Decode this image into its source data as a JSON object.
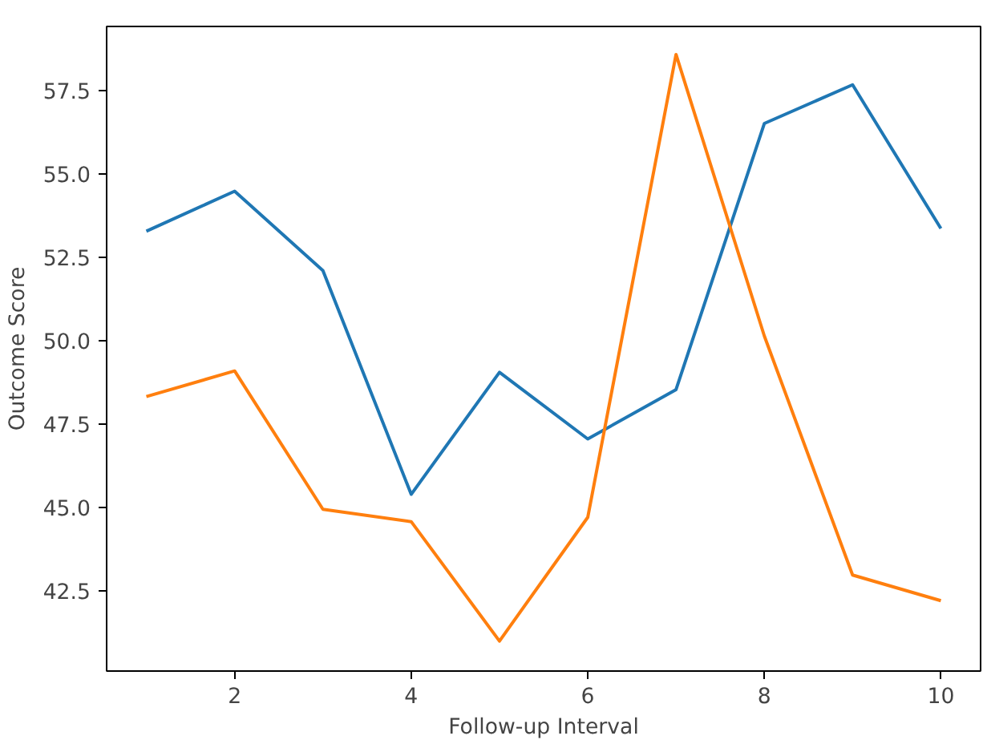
{
  "chart_data": {
    "type": "line",
    "xlabel": "Follow-up Interval",
    "ylabel": "Outcome Score",
    "x": [
      1,
      2,
      3,
      4,
      5,
      6,
      7,
      8,
      9,
      10
    ],
    "series": [
      {
        "color": "#1f77b4",
        "values": [
          53.28,
          54.48,
          52.1,
          45.39,
          49.05,
          47.05,
          48.53,
          56.51,
          57.67,
          53.36
        ]
      },
      {
        "color": "#ff7f0e",
        "values": [
          48.32,
          49.09,
          44.94,
          44.57,
          40.99,
          44.7,
          58.58,
          50.14,
          42.97,
          42.2
        ]
      }
    ],
    "xlim": [
      0.55,
      10.45
    ],
    "ylim": [
      40.09,
      59.42
    ],
    "xticks": [
      2,
      4,
      6,
      8,
      10
    ],
    "yticks": [
      {
        "value": 42.5,
        "label": "42.5"
      },
      {
        "value": 45,
        "label": "45.0"
      },
      {
        "value": 47.5,
        "label": "47.5"
      },
      {
        "value": 50,
        "label": "50.0"
      },
      {
        "value": 52.5,
        "label": "52.5"
      },
      {
        "value": 55,
        "label": "55.0"
      },
      {
        "value": 57.5,
        "label": "57.5"
      }
    ],
    "grid": false
  }
}
